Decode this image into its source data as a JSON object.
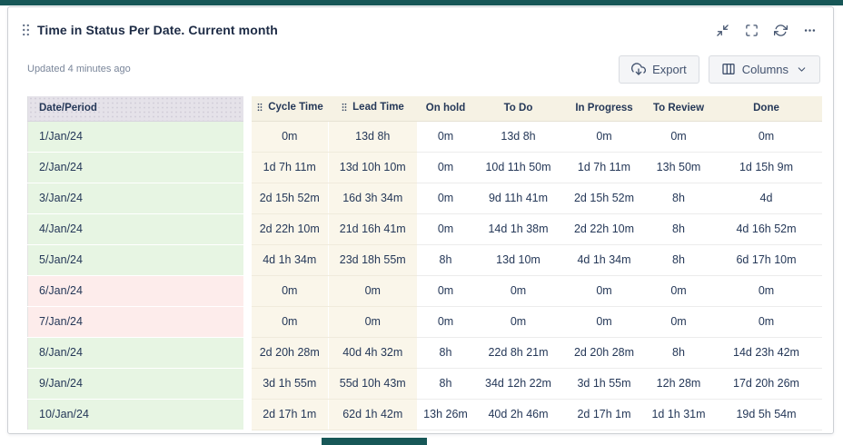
{
  "widget": {
    "title": "Time in Status Per Date. Current month",
    "updated": "Updated 4 minutes ago",
    "actions": {
      "export": "Export",
      "columns": "Columns"
    }
  },
  "table": {
    "columns": [
      "Date/Period",
      "Cycle Time",
      "Lead Time",
      "On hold",
      "To Do",
      "In Progress",
      "To Review",
      "Done"
    ],
    "rows": [
      {
        "date": "1/Jan/24",
        "weekend": false,
        "values": [
          "0m",
          "13d 8h",
          "0m",
          "13d 8h",
          "0m",
          "0m",
          "0m"
        ]
      },
      {
        "date": "2/Jan/24",
        "weekend": false,
        "values": [
          "1d 7h 11m",
          "13d 10h 10m",
          "0m",
          "10d 11h 50m",
          "1d 7h 11m",
          "13h 50m",
          "1d 15h 9m"
        ]
      },
      {
        "date": "3/Jan/24",
        "weekend": false,
        "values": [
          "2d 15h 52m",
          "16d 3h 34m",
          "0m",
          "9d 11h 41m",
          "2d 15h 52m",
          "8h",
          "4d"
        ]
      },
      {
        "date": "4/Jan/24",
        "weekend": false,
        "values": [
          "2d 22h 10m",
          "21d 16h 41m",
          "0m",
          "14d 1h 38m",
          "2d 22h 10m",
          "8h",
          "4d 16h 52m"
        ]
      },
      {
        "date": "5/Jan/24",
        "weekend": false,
        "values": [
          "4d 1h 34m",
          "23d 18h 55m",
          "8h",
          "13d 10m",
          "4d 1h 34m",
          "8h",
          "6d 17h 10m"
        ]
      },
      {
        "date": "6/Jan/24",
        "weekend": true,
        "values": [
          "0m",
          "0m",
          "0m",
          "0m",
          "0m",
          "0m",
          "0m"
        ]
      },
      {
        "date": "7/Jan/24",
        "weekend": true,
        "values": [
          "0m",
          "0m",
          "0m",
          "0m",
          "0m",
          "0m",
          "0m"
        ]
      },
      {
        "date": "8/Jan/24",
        "weekend": false,
        "values": [
          "2d 20h 28m",
          "40d 4h 32m",
          "8h",
          "22d 8h 21m",
          "2d 20h 28m",
          "8h",
          "14d 23h 42m"
        ]
      },
      {
        "date": "9/Jan/24",
        "weekend": false,
        "values": [
          "3d 1h 55m",
          "55d 10h 43m",
          "8h",
          "34d 12h 22m",
          "3d 1h 55m",
          "12h 28m",
          "17d 20h 26m"
        ]
      },
      {
        "date": "10/Jan/24",
        "weekend": false,
        "values": [
          "2d 17h 1m",
          "62d 1h 42m",
          "13h 26m",
          "40d 2h 46m",
          "2d 17h 1m",
          "1d 1h 31m",
          "19d 5h 54m"
        ]
      }
    ]
  },
  "colors": {
    "accent_teal": "#175757",
    "weekday_green": "#e7f5e3",
    "weekend_pink": "#fdeceb",
    "metric_cream": "#faf6ea",
    "header_cream": "#f6f2e4",
    "header_gray": "#e5e2e9",
    "text_navy": "#253858"
  }
}
